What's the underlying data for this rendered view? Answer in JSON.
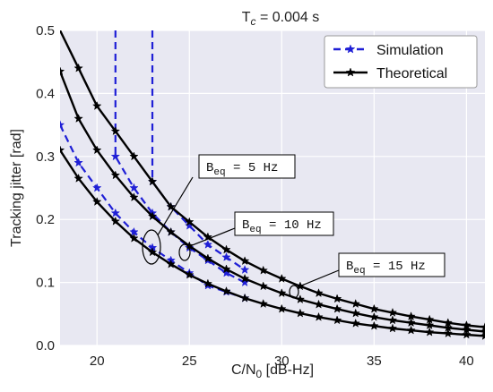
{
  "chart_data": {
    "type": "line",
    "title": "T_c = 0.004 s",
    "xlabel": "C/N0 [dB-Hz]",
    "ylabel": "Tracking jitter [rad]",
    "xlim": [
      18,
      41
    ],
    "ylim": [
      0,
      0.5
    ],
    "xticks": [
      20,
      25,
      30,
      35,
      40
    ],
    "yticks": [
      0.0,
      0.1,
      0.2,
      0.3,
      0.4,
      0.5
    ],
    "xtick_labels": [
      "20",
      "25",
      "30",
      "35",
      "40"
    ],
    "ytick_labels": [
      "0.0",
      "0.1",
      "0.2",
      "0.3",
      "0.4",
      "0.5"
    ],
    "grid": true,
    "legend_position": "top-right",
    "legend": [
      {
        "label": "Simulation",
        "color": "#1f1fd6",
        "style": "dashed",
        "marker": "star"
      },
      {
        "label": "Theoretical",
        "color": "#000000",
        "style": "solid",
        "marker": "star"
      }
    ],
    "series": [
      {
        "kind": "theoretical",
        "beq": 5,
        "x": [
          18,
          19,
          20,
          21,
          22,
          23,
          24,
          25,
          26,
          27,
          28,
          29,
          30,
          31,
          32,
          33,
          34,
          35,
          36,
          37,
          38,
          39,
          40,
          41
        ],
        "y": [
          0.5,
          0.44,
          0.38,
          0.34,
          0.3,
          0.26,
          0.22,
          0.196,
          0.172,
          0.152,
          0.134,
          0.119,
          0.106,
          0.094,
          0.083,
          0.074,
          0.066,
          0.058,
          0.052,
          0.046,
          0.041,
          0.036,
          0.032,
          0.029
        ]
      },
      {
        "kind": "theoretical",
        "beq": 10,
        "x": [
          18,
          19,
          20,
          21,
          22,
          23,
          24,
          25,
          26,
          27,
          28,
          29,
          30,
          31,
          32,
          33,
          34,
          35,
          36,
          37,
          38,
          39,
          40,
          41
        ],
        "y": [
          0.435,
          0.36,
          0.31,
          0.27,
          0.235,
          0.205,
          0.18,
          0.158,
          0.138,
          0.121,
          0.106,
          0.094,
          0.083,
          0.073,
          0.065,
          0.058,
          0.051,
          0.045,
          0.04,
          0.036,
          0.032,
          0.028,
          0.025,
          0.022
        ]
      },
      {
        "kind": "theoretical",
        "beq": 15,
        "x": [
          18,
          19,
          20,
          21,
          22,
          23,
          24,
          25,
          26,
          27,
          28,
          29,
          30,
          31,
          32,
          33,
          34,
          35,
          36,
          37,
          38,
          39,
          40,
          41
        ],
        "y": [
          0.31,
          0.265,
          0.228,
          0.197,
          0.17,
          0.148,
          0.129,
          0.112,
          0.098,
          0.086,
          0.075,
          0.066,
          0.058,
          0.051,
          0.045,
          0.04,
          0.035,
          0.031,
          0.027,
          0.024,
          0.021,
          0.019,
          0.017,
          0.015
        ]
      },
      {
        "kind": "simulation",
        "beq": 5,
        "x": [
          23,
          23,
          24,
          25,
          26,
          27,
          28
        ],
        "y": [
          0.5,
          0.26,
          0.22,
          0.19,
          0.16,
          0.14,
          0.12
        ]
      },
      {
        "kind": "simulation",
        "beq": 10,
        "x": [
          21,
          21,
          22,
          23,
          24,
          25,
          26,
          27,
          28
        ],
        "y": [
          0.5,
          0.3,
          0.25,
          0.21,
          0.18,
          0.155,
          0.135,
          0.115,
          0.1
        ]
      },
      {
        "kind": "simulation",
        "beq": 15,
        "x": [
          18,
          19,
          20,
          21,
          22,
          23,
          24,
          25,
          26,
          27,
          28
        ],
        "y": [
          0.35,
          0.29,
          0.25,
          0.21,
          0.18,
          0.155,
          0.135,
          0.115,
          0.095,
          0.085,
          0.075
        ]
      }
    ],
    "annotations": [
      {
        "label": "Beq = 5 Hz",
        "base": "B",
        "sub": "eq",
        "rest": " = 5 Hz"
      },
      {
        "label": "Beq = 10 Hz",
        "base": "B",
        "sub": "eq",
        "rest": " = 10 Hz"
      },
      {
        "label": "Beq = 15 Hz",
        "base": "B",
        "sub": "eq",
        "rest": " = 15 Hz"
      }
    ],
    "colors": {
      "plot_background": "#e8e8f2",
      "grid": "#ffffff",
      "simulation": "#1f1fd6",
      "theoretical": "#000000"
    }
  }
}
